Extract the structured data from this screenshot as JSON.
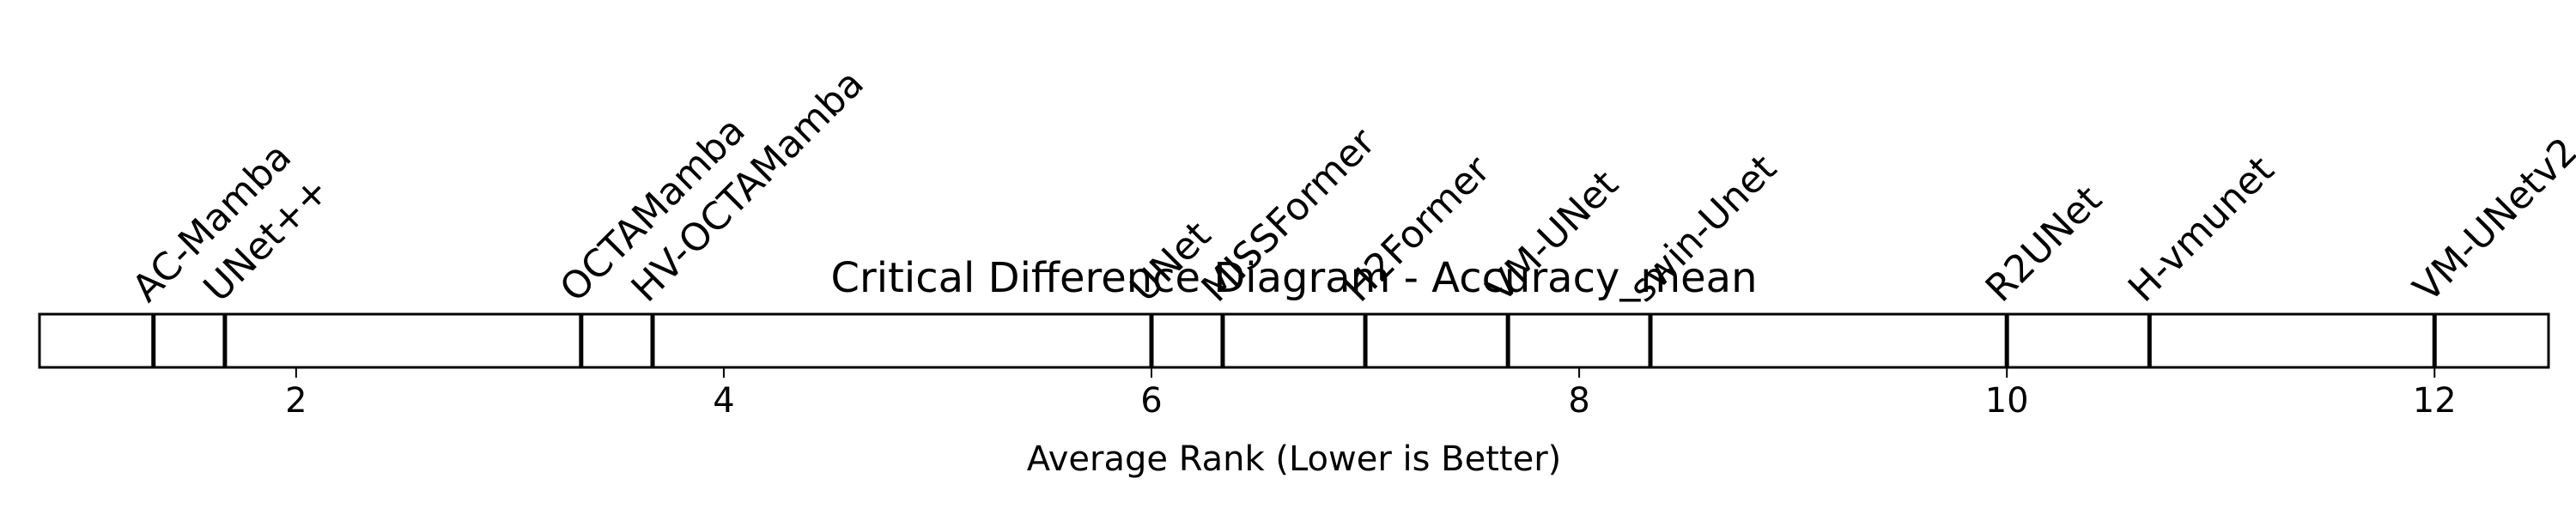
{
  "chart_data": {
    "type": "critical-difference",
    "title": "Critical Difference Diagram - Accuracy_mean",
    "xlabel": "Average Rank (Lower is Better)",
    "xlim": [
      0.8,
      12.533
    ],
    "xticks": [
      2,
      4,
      6,
      8,
      10,
      12
    ],
    "grid": false,
    "items": [
      {
        "name": "AC-Mamba",
        "rank": 1.333
      },
      {
        "name": "UNet++",
        "rank": 1.667
      },
      {
        "name": "OCTAMamba",
        "rank": 3.333
      },
      {
        "name": "HV-OCTAMamba",
        "rank": 3.667
      },
      {
        "name": "UNet",
        "rank": 6.0
      },
      {
        "name": "MISSFormer",
        "rank": 6.333
      },
      {
        "name": "H2Former",
        "rank": 7.0
      },
      {
        "name": "VM-UNet",
        "rank": 7.667
      },
      {
        "name": "swin-Unet",
        "rank": 8.333
      },
      {
        "name": "R2UNet",
        "rank": 10.0
      },
      {
        "name": "H-vmunet",
        "rank": 10.667
      },
      {
        "name": "VM-UNetv2",
        "rank": 12.0
      }
    ]
  }
}
